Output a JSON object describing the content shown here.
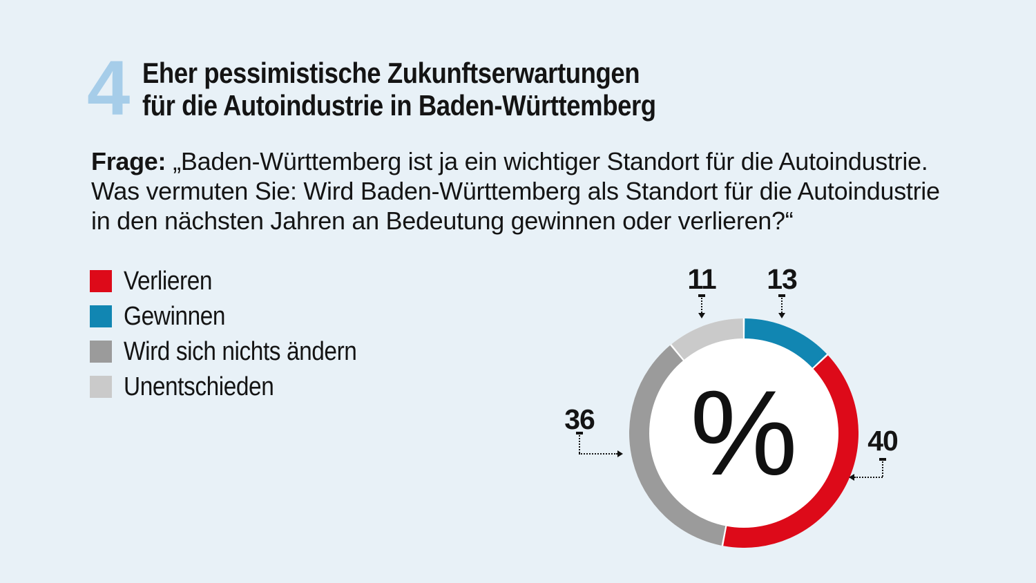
{
  "page": {
    "background": "#e8f1f7"
  },
  "header": {
    "figure_number": "4",
    "figure_number_color": "#a6cde9",
    "title_line1": "Eher pessimistische Zukunftserwartungen",
    "title_line2": "für die Autoindustrie in Baden-Württemberg"
  },
  "question": {
    "prefix": "Frage:",
    "line1_rest": "„Baden-Württemberg ist ja ein wichtiger Standort für die Autoindustrie.",
    "line2": "Was vermuten Sie: Wird Baden-Württemberg als Standort für die Autoindustrie",
    "line3": "in den nächsten Jahren an Bedeutung gewinnen oder verlieren?“"
  },
  "chart_data": {
    "type": "pie",
    "subtype": "donut",
    "unit": "%",
    "center_label": "%",
    "total": 100,
    "segments": [
      {
        "label": "Verlieren",
        "value": 40,
        "color": "#dd0a19"
      },
      {
        "label": "Gewinnen",
        "value": 13,
        "color": "#1186b2"
      },
      {
        "label": "Wird sich nichts ändern",
        "value": 36,
        "color": "#9b9b9b"
      },
      {
        "label": "Unentschieden",
        "value": 11,
        "color": "#cacaca"
      }
    ],
    "clockwise_order_from_top": [
      "Gewinnen",
      "Verlieren",
      "Wird sich nichts ändern",
      "Unentschieden"
    ],
    "legend_position": "left",
    "ring": {
      "outer_radius": 166,
      "thickness": 35,
      "separator_color": "#ffffff",
      "hole_color": "#ffffff"
    }
  }
}
